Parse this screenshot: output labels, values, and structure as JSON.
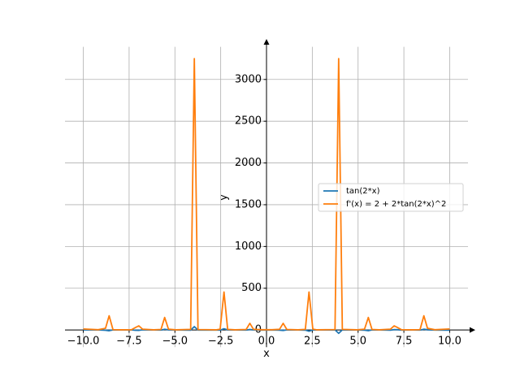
{
  "chart_data": {
    "type": "line",
    "xlabel": "x",
    "ylabel": "y",
    "x": [
      -10,
      -9.19,
      -8.79,
      -8.59,
      -8.38,
      -7.98,
      -7.37,
      -7.17,
      -6.97,
      -6.77,
      -6.16,
      -5.76,
      -5.56,
      -5.35,
      -4.95,
      -4.14,
      -3.94,
      -3.74,
      -2.73,
      -2.53,
      -2.32,
      -2.12,
      -1.72,
      -1.11,
      -0.91,
      -0.71,
      -0.3,
      0.3,
      0.71,
      0.91,
      1.11,
      1.72,
      2.12,
      2.32,
      2.53,
      2.73,
      3.74,
      3.94,
      4.14,
      4.95,
      5.35,
      5.56,
      5.76,
      6.16,
      6.77,
      6.97,
      7.17,
      7.37,
      7.98,
      8.38,
      8.59,
      8.79,
      9.19,
      10
    ],
    "series": [
      {
        "name": "tan(2*x)",
        "color": "#1f77b4",
        "values": [
          2,
          0.6,
          -3,
          -9,
          1,
          0,
          1,
          -3.5,
          -5,
          2,
          0,
          -1.5,
          8.6,
          2,
          0,
          -1.6,
          40.3,
          -1.3,
          0,
          -2,
          15,
          1.6,
          0,
          -1.4,
          6,
          1.7,
          -0.7,
          0.7,
          -1.7,
          -6,
          1.4,
          0,
          -1.6,
          -15,
          2,
          0,
          1.3,
          -40.3,
          1.6,
          0,
          -2,
          -8.6,
          1.5,
          0,
          -2,
          5,
          3.5,
          -1,
          0,
          -1,
          9,
          3,
          -0.6,
          -2
        ]
      },
      {
        "name": "f'(x) = 2 + 2*tan(2*x)^2",
        "color": "#ff7f0e",
        "values": [
          12,
          3,
          20,
          170,
          4,
          2,
          3,
          27,
          50,
          10,
          2,
          6,
          150,
          10,
          2,
          7,
          3250,
          5,
          2,
          10,
          455,
          7,
          2,
          6,
          80,
          8,
          3,
          3,
          8,
          80,
          6,
          2,
          7,
          455,
          10,
          2,
          5,
          3250,
          7,
          2,
          10,
          150,
          6,
          2,
          10,
          50,
          27,
          3,
          2,
          4,
          170,
          20,
          3,
          12
        ]
      }
    ],
    "xlim": [
      -11,
      11
    ],
    "ylim": [
      -205,
      3391
    ],
    "xticks": [
      {
        "value": -10,
        "label": "−10.0"
      },
      {
        "value": -7.5,
        "label": "−7.5"
      },
      {
        "value": -5,
        "label": "−5.0"
      },
      {
        "value": -2.5,
        "label": "−2.5"
      },
      {
        "value": 0,
        "label": "0.0"
      },
      {
        "value": 2.5,
        "label": "2.5"
      },
      {
        "value": 5,
        "label": "5.0"
      },
      {
        "value": 7.5,
        "label": "7.5"
      },
      {
        "value": 10,
        "label": "10.0"
      }
    ],
    "yticks": [
      0,
      500,
      1000,
      1500,
      2000,
      2500,
      3000
    ],
    "grid": true,
    "legend": "right"
  }
}
